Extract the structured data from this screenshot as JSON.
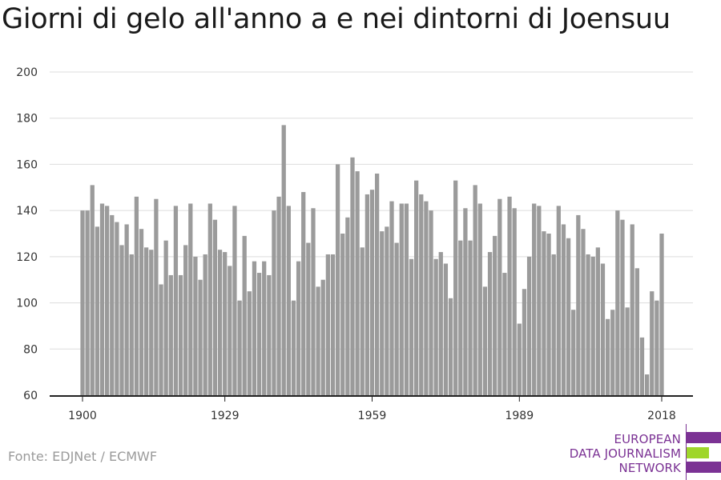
{
  "title": "Giorni di gelo all'anno a e nei dintorni di Joensuu",
  "source": "Fonte: EDJNet / ECMWF",
  "logo": {
    "lines": [
      "EUROPEAN",
      "DATA JOURNALISM",
      "NETWORK"
    ],
    "colors": [
      "#7b3294",
      "#9fd62b",
      "#7b3294"
    ]
  },
  "colors": {
    "bar": "#9b9b9b",
    "grid": "#dddddd",
    "axis": "#222222"
  },
  "chart_data": {
    "type": "bar",
    "title": "Giorni di gelo all'anno a e nei dintorni di Joensuu",
    "xlabel": "",
    "ylabel": "",
    "ylim": [
      60,
      200
    ],
    "yticks": [
      60,
      80,
      100,
      120,
      140,
      160,
      180,
      200
    ],
    "xticks": [
      1900,
      1929,
      1959,
      1989,
      2018
    ],
    "grid": true,
    "x": [
      1900,
      1901,
      1902,
      1903,
      1904,
      1905,
      1906,
      1907,
      1908,
      1909,
      1910,
      1911,
      1912,
      1913,
      1914,
      1915,
      1916,
      1917,
      1918,
      1919,
      1920,
      1921,
      1922,
      1923,
      1924,
      1925,
      1926,
      1927,
      1928,
      1929,
      1930,
      1931,
      1932,
      1933,
      1934,
      1935,
      1936,
      1937,
      1938,
      1939,
      1940,
      1941,
      1942,
      1943,
      1944,
      1945,
      1946,
      1947,
      1948,
      1949,
      1950,
      1951,
      1952,
      1953,
      1954,
      1955,
      1956,
      1957,
      1958,
      1959,
      1960,
      1961,
      1962,
      1963,
      1964,
      1965,
      1966,
      1967,
      1968,
      1969,
      1970,
      1971,
      1972,
      1973,
      1974,
      1975,
      1976,
      1977,
      1978,
      1979,
      1980,
      1981,
      1982,
      1983,
      1984,
      1985,
      1986,
      1987,
      1988,
      1989,
      1990,
      1991,
      1992,
      1993,
      1994,
      1995,
      1996,
      1997,
      1998,
      1999,
      2000,
      2001,
      2002,
      2003,
      2004,
      2005,
      2006,
      2007,
      2008,
      2009,
      2010,
      2011,
      2012,
      2013,
      2014,
      2015,
      2016,
      2017,
      2018
    ],
    "values": [
      140,
      140,
      151,
      133,
      143,
      142,
      138,
      135,
      125,
      134,
      121,
      146,
      132,
      124,
      123,
      145,
      108,
      127,
      112,
      142,
      112,
      125,
      143,
      120,
      110,
      121,
      143,
      136,
      123,
      122,
      116,
      142,
      101,
      129,
      105,
      118,
      113,
      118,
      112,
      140,
      146,
      177,
      142,
      101,
      118,
      148,
      126,
      141,
      107,
      110,
      121,
      121,
      160,
      130,
      137,
      163,
      157,
      124,
      147,
      149,
      156,
      131,
      133,
      144,
      126,
      143,
      143,
      119,
      153,
      147,
      144,
      140,
      119,
      122,
      117,
      102,
      153,
      127,
      141,
      127,
      151,
      143,
      107,
      122,
      129,
      145,
      113,
      146,
      141,
      91,
      106,
      120,
      143,
      142,
      131,
      130,
      121,
      142,
      134,
      128,
      97,
      138,
      132,
      121,
      120,
      124,
      117,
      93,
      97,
      140,
      136,
      98,
      134,
      115,
      85,
      69,
      105,
      101,
      130
    ]
  }
}
